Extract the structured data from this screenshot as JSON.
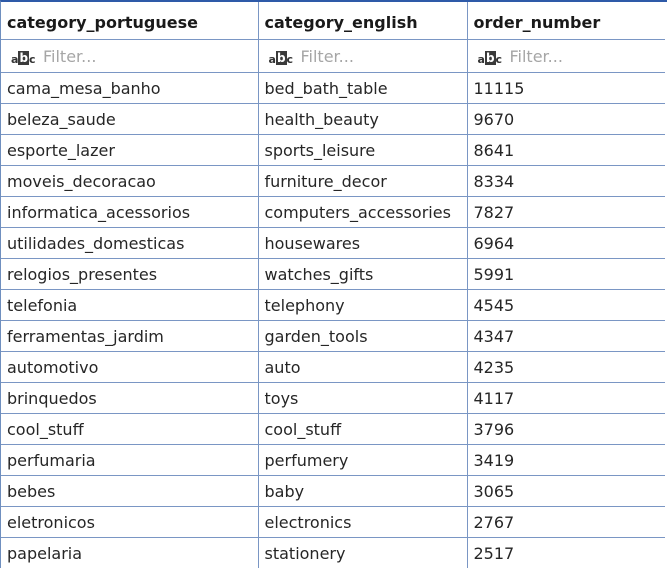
{
  "columns": [
    "category_portuguese",
    "category_english",
    "order_number"
  ],
  "filter": {
    "placeholder": "Filter...",
    "icon": "abc-filter-icon"
  },
  "rows": [
    [
      "cama_mesa_banho",
      "bed_bath_table",
      "11115"
    ],
    [
      "beleza_saude",
      "health_beauty",
      "9670"
    ],
    [
      "esporte_lazer",
      "sports_leisure",
      "8641"
    ],
    [
      "moveis_decoracao",
      "furniture_decor",
      "8334"
    ],
    [
      "informatica_acessorios",
      "computers_accessories",
      "7827"
    ],
    [
      "utilidades_domesticas",
      "housewares",
      "6964"
    ],
    [
      "relogios_presentes",
      "watches_gifts",
      "5991"
    ],
    [
      "telefonia",
      "telephony",
      "4545"
    ],
    [
      "ferramentas_jardim",
      "garden_tools",
      "4347"
    ],
    [
      "automotivo",
      "auto",
      "4235"
    ],
    [
      "brinquedos",
      "toys",
      "4117"
    ],
    [
      "cool_stuff",
      "cool_stuff",
      "3796"
    ],
    [
      "perfumaria",
      "perfumery",
      "3419"
    ],
    [
      "bebes",
      "baby",
      "3065"
    ],
    [
      "eletronicos",
      "electronics",
      "2767"
    ],
    [
      "papelaria",
      "stationery",
      "2517"
    ]
  ],
  "colors": {
    "grid_line": "#7a96c4",
    "top_border": "#2e5aa8",
    "placeholder": "#a6a6a6"
  }
}
